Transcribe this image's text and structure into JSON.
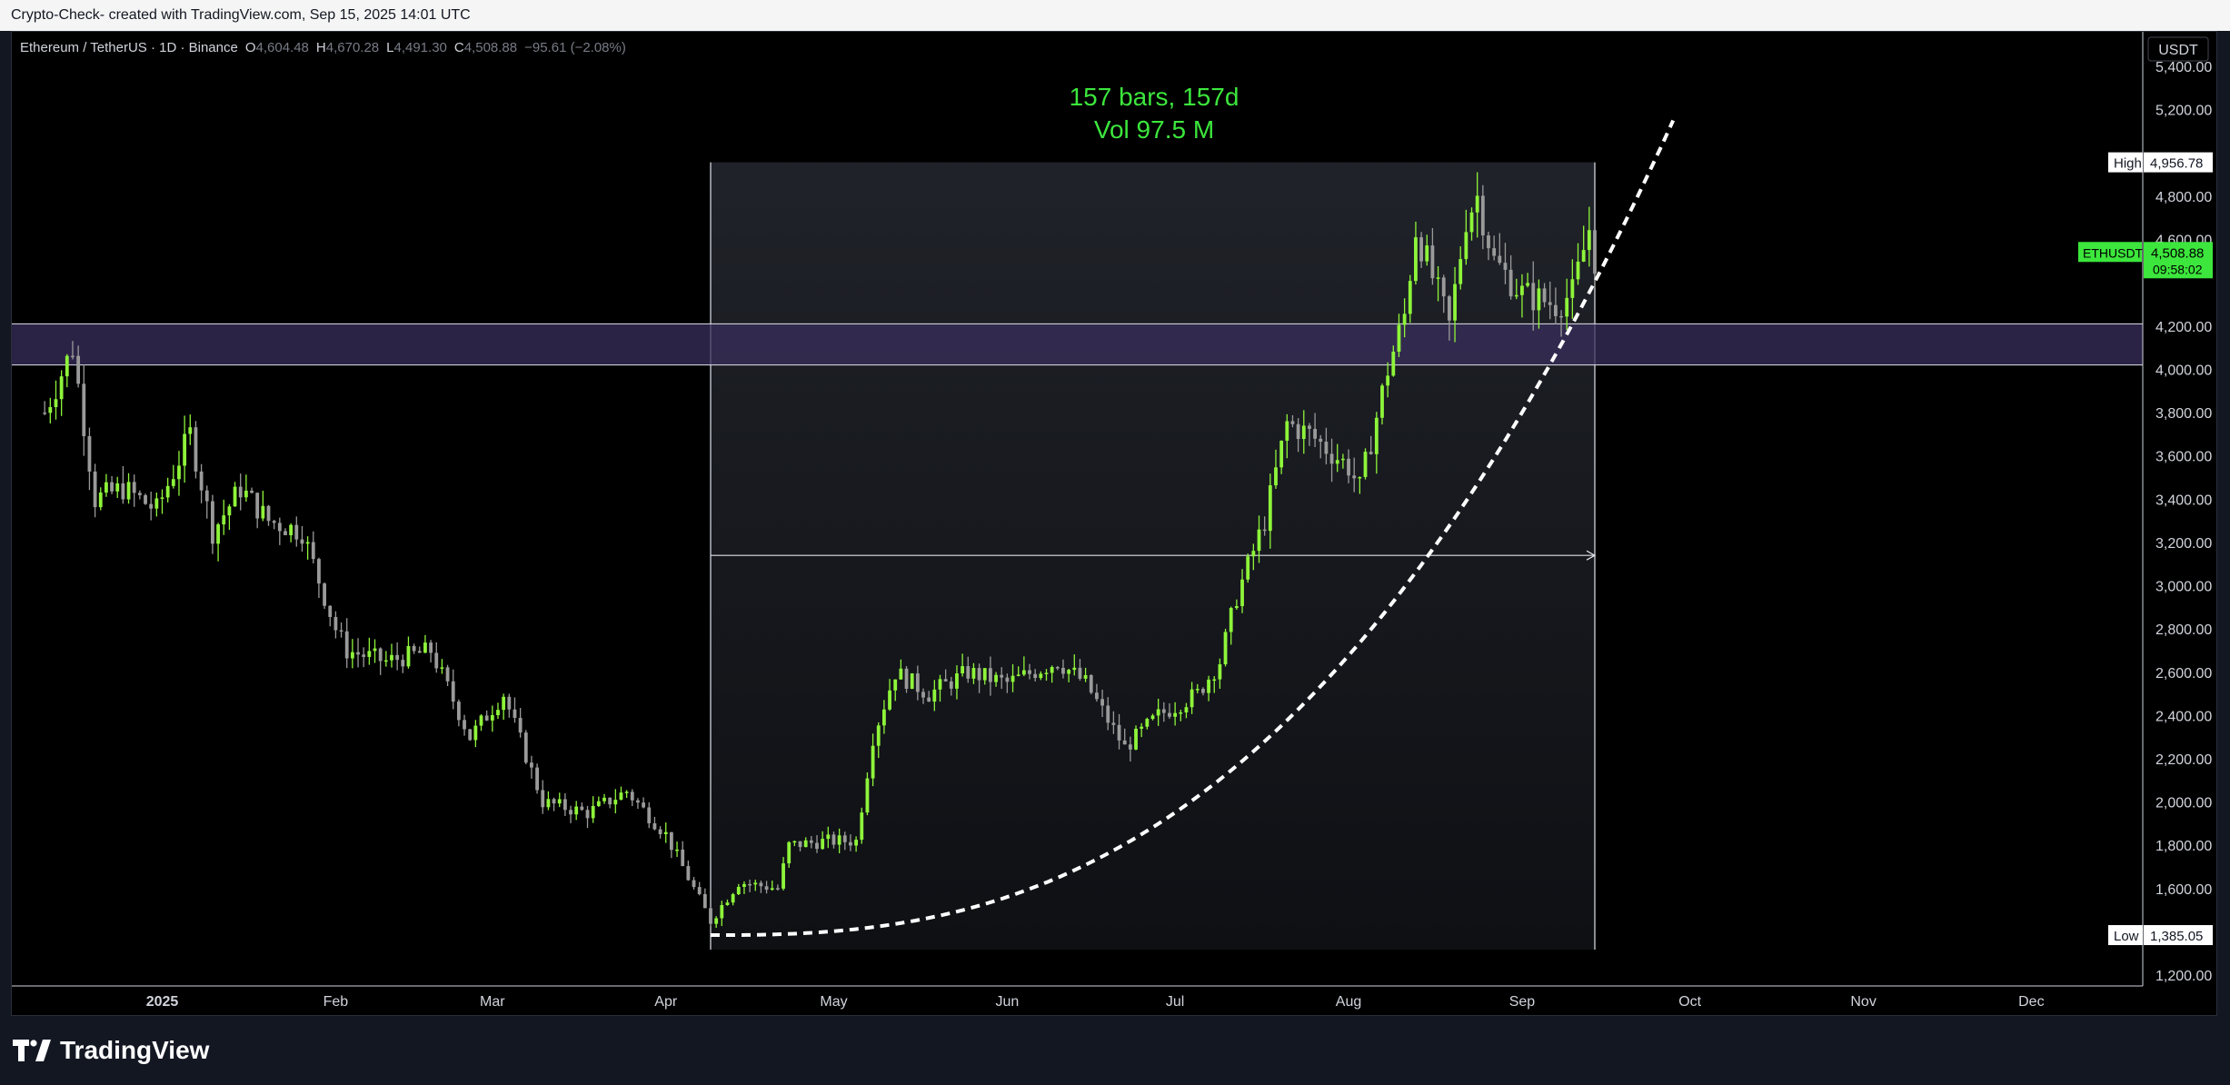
{
  "header": {
    "title": "Crypto-Check- created with TradingView.com, Sep 15, 2025 14:01 UTC"
  },
  "legend": {
    "symbol": "Ethereum / TetherUS · 1D · Binance",
    "open_label": "O",
    "open": "4,604.48",
    "high_label": "H",
    "high": "4,670.28",
    "low_label": "L",
    "low": "4,491.30",
    "close_label": "C",
    "close": "4,508.88",
    "change": "−95.61 (−2.08%)"
  },
  "measure": {
    "bars_text": "157 bars, 157d",
    "volume_text": "Vol 97.5 M"
  },
  "price_axis": {
    "currency": "USDT",
    "ticks": [
      "5,400.00",
      "5,200.00",
      "4,800.00",
      "4,600.00",
      "4,200.00",
      "4,000.00",
      "3,800.00",
      "3,600.00",
      "3,400.00",
      "3,200.00",
      "3,000.00",
      "2,800.00",
      "2,600.00",
      "2,400.00",
      "2,200.00",
      "2,000.00",
      "1,800.00",
      "1,600.00",
      "1,200.00"
    ],
    "high_label": "High",
    "high_value": "4,956.78",
    "low_label": "Low",
    "low_value": "1,385.05",
    "current_symbol": "ETHUSDT",
    "current_value": "4,508.88",
    "countdown": "09:58:02"
  },
  "time_axis": {
    "ticks": [
      "2025",
      "Feb",
      "Mar",
      "Apr",
      "May",
      "Jun",
      "Jul",
      "Aug",
      "Sep",
      "Oct",
      "Nov",
      "Dec"
    ]
  },
  "footer": {
    "brand": "TradingView"
  },
  "colors": {
    "up": "#8ef43a",
    "down": "#9a9a9a",
    "accent_green": "#3ce63c",
    "zone": "#3a2f5c",
    "background": "#000000"
  },
  "chart_data": {
    "type": "candlestick",
    "symbol": "ETHUSDT",
    "interval": "1D",
    "y_range": [
      1150,
      5560
    ],
    "resistance_zone": [
      4020,
      4210
    ],
    "measure_range": {
      "start": "Apr 9",
      "end": "Sep 14",
      "top": 4956.78,
      "bottom": 1385.05,
      "mid_line": 3140
    },
    "curve": {
      "start": [
        "Apr 9",
        1385
      ],
      "end": [
        "Sep 28",
        5150
      ]
    },
    "anchors": [
      [
        "Dec 11",
        3800
      ],
      [
        "Dec 16",
        4100
      ],
      [
        "Dec 20",
        3400
      ],
      [
        "Dec 25",
        3450
      ],
      [
        "Dec 31",
        3350
      ],
      [
        "Jan 6",
        3700
      ],
      [
        "Jan 10",
        3250
      ],
      [
        "Jan 15",
        3450
      ],
      [
        "Jan 20",
        3300
      ],
      [
        "Jan 26",
        3250
      ],
      [
        "Feb 1",
        2800
      ],
      [
        "Feb 3",
        2700
      ],
      [
        "Feb 10",
        2650
      ],
      [
        "Feb 18",
        2700
      ],
      [
        "Feb 25",
        2300
      ],
      [
        "Mar 3",
        2500
      ],
      [
        "Mar 10",
        2000
      ],
      [
        "Mar 18",
        1950
      ],
      [
        "Mar 25",
        2050
      ],
      [
        "Apr 1",
        1850
      ],
      [
        "Apr 9",
        1450
      ],
      [
        "Apr 14",
        1630
      ],
      [
        "Apr 21",
        1600
      ],
      [
        "Apr 23",
        1800
      ],
      [
        "Apr 30",
        1820
      ],
      [
        "May 5",
        1820
      ],
      [
        "May 8",
        2300
      ],
      [
        "May 12",
        2600
      ],
      [
        "May 18",
        2500
      ],
      [
        "May 25",
        2600
      ],
      [
        "Jun 1",
        2550
      ],
      [
        "Jun 10",
        2650
      ],
      [
        "Jun 15",
        2550
      ],
      [
        "Jun 22",
        2250
      ],
      [
        "Jun 28",
        2400
      ],
      [
        "Jul 5",
        2500
      ],
      [
        "Jul 9",
        2650
      ],
      [
        "Jul 12",
        2950
      ],
      [
        "Jul 17",
        3300
      ],
      [
        "Jul 21",
        3750
      ],
      [
        "Jul 25",
        3700
      ],
      [
        "Aug 1",
        3550
      ],
      [
        "Aug 3",
        3450
      ],
      [
        "Aug 8",
        4000
      ],
      [
        "Aug 11",
        4250
      ],
      [
        "Aug 13",
        4650
      ],
      [
        "Aug 19",
        4200
      ],
      [
        "Aug 22",
        4700
      ],
      [
        "Aug 24",
        4800
      ],
      [
        "Aug 27",
        4500
      ],
      [
        "Sep 1",
        4350
      ],
      [
        "Sep 7",
        4300
      ],
      [
        "Sep 10",
        4350
      ],
      [
        "Sep 13",
        4650
      ],
      [
        "Sep 14",
        4508.88
      ]
    ]
  }
}
